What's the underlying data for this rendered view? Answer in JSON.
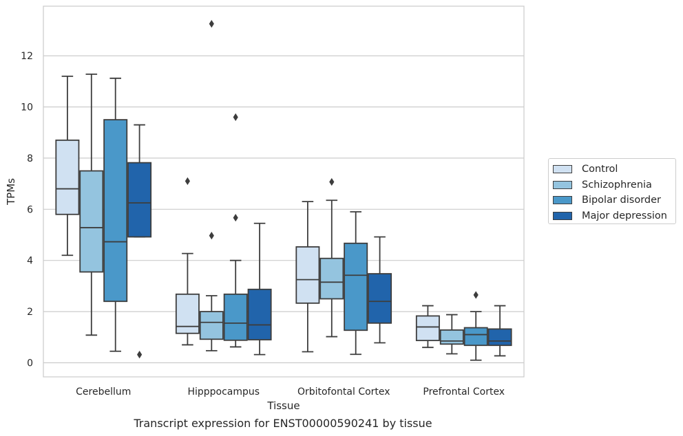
{
  "chart_data": {
    "type": "box",
    "title": "Transcript expression for ENST00000590241 by tissue",
    "xlabel": "Tissue",
    "ylabel": "TPMs",
    "ylim": [
      -0.55,
      13.95
    ],
    "yticks": [
      0,
      2,
      4,
      6,
      8,
      10,
      12
    ],
    "grid": "horizontal",
    "legend_position": "right",
    "categories": [
      "Cerebellum",
      "Hipppocampus",
      "Orbitofontal Cortex",
      "Prefrontal Cortex"
    ],
    "series": [
      {
        "name": "Control",
        "color": "#d0e1f2",
        "boxes": [
          {
            "whislo": 4.2,
            "q1": 5.8,
            "med": 6.8,
            "q3": 8.7,
            "whishi": 11.2,
            "fliers": []
          },
          {
            "whislo": 0.7,
            "q1": 1.15,
            "med": 1.42,
            "q3": 2.68,
            "whishi": 4.27,
            "fliers": [
              7.1
            ]
          },
          {
            "whislo": 0.43,
            "q1": 2.33,
            "med": 3.25,
            "q3": 4.53,
            "whishi": 6.3,
            "fliers": []
          },
          {
            "whislo": 0.6,
            "q1": 0.87,
            "med": 1.4,
            "q3": 1.83,
            "whishi": 2.23,
            "fliers": []
          }
        ]
      },
      {
        "name": "Schizophrenia",
        "color": "#94c4df",
        "boxes": [
          {
            "whislo": 1.08,
            "q1": 3.55,
            "med": 5.28,
            "q3": 7.5,
            "whishi": 11.28,
            "fliers": []
          },
          {
            "whislo": 0.47,
            "q1": 0.92,
            "med": 1.58,
            "q3": 2.0,
            "whishi": 2.62,
            "fliers": [
              4.97,
              13.25
            ]
          },
          {
            "whislo": 1.02,
            "q1": 2.5,
            "med": 3.15,
            "q3": 4.08,
            "whishi": 6.35,
            "fliers": [
              7.07
            ]
          },
          {
            "whislo": 0.35,
            "q1": 0.73,
            "med": 0.85,
            "q3": 1.28,
            "whishi": 1.88,
            "fliers": []
          }
        ]
      },
      {
        "name": "Bipolar disorder",
        "color": "#4a98c9",
        "boxes": [
          {
            "whislo": 0.45,
            "q1": 2.4,
            "med": 4.73,
            "q3": 9.5,
            "whishi": 11.12,
            "fliers": []
          },
          {
            "whislo": 0.62,
            "q1": 0.88,
            "med": 1.55,
            "q3": 2.68,
            "whishi": 4.0,
            "fliers": [
              5.67,
              9.6
            ]
          },
          {
            "whislo": 0.33,
            "q1": 1.27,
            "med": 3.42,
            "q3": 4.67,
            "whishi": 5.9,
            "fliers": []
          },
          {
            "whislo": 0.1,
            "q1": 0.68,
            "med": 1.1,
            "q3": 1.37,
            "whishi": 2.0,
            "fliers": [
              2.65
            ]
          }
        ]
      },
      {
        "name": "Major depression",
        "color": "#2164ab",
        "boxes": [
          {
            "whislo": 4.92,
            "q1": 4.92,
            "med": 6.25,
            "q3": 7.82,
            "whishi": 9.3,
            "fliers": [
              0.32
            ]
          },
          {
            "whislo": 0.32,
            "q1": 0.9,
            "med": 1.48,
            "q3": 2.87,
            "whishi": 5.45,
            "fliers": []
          },
          {
            "whislo": 0.78,
            "q1": 1.55,
            "med": 2.4,
            "q3": 3.48,
            "whishi": 4.92,
            "fliers": []
          },
          {
            "whislo": 0.27,
            "q1": 0.68,
            "med": 0.85,
            "q3": 1.32,
            "whishi": 2.23,
            "fliers": []
          }
        ]
      }
    ]
  }
}
